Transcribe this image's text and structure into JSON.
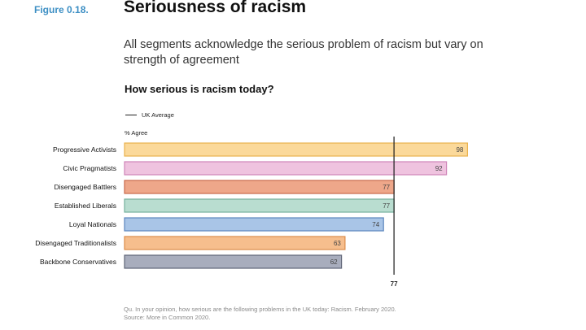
{
  "figure": {
    "prefix": "Figure",
    "number": "0.18."
  },
  "title": "Seriousness of racism",
  "subtitle": "All segments acknowledge the serious problem of racism but vary on strength of agreement",
  "question": "How serious is racism today?",
  "legend": {
    "label": "UK Average"
  },
  "axis_label": "% Agree",
  "footnote": {
    "line1": "Qu. In your opinion, how serious are the following problems in the UK today: Racism. February 2020.",
    "line2": "Source: More in Common 2020."
  },
  "chart_data": {
    "type": "bar",
    "orientation": "horizontal",
    "categories": [
      "Progressive Activists",
      "Civic Pragmatists",
      "Disengaged Battlers",
      "Established Liberals",
      "Loyal Nationals",
      "Disengaged Traditionalists",
      "Backbone Conservatives"
    ],
    "values": [
      98,
      92,
      77,
      77,
      74,
      63,
      62
    ],
    "colors": [
      {
        "fill": "#fbd99a",
        "stroke": "#eab24d"
      },
      {
        "fill": "#efc3df",
        "stroke": "#cf84b8"
      },
      {
        "fill": "#eea78a",
        "stroke": "#c9694a"
      },
      {
        "fill": "#b9ddd0",
        "stroke": "#76b19d"
      },
      {
        "fill": "#a9c5e7",
        "stroke": "#5b85bd"
      },
      {
        "fill": "#f6be8d",
        "stroke": "#dc8c4a"
      },
      {
        "fill": "#a8adbd",
        "stroke": "#5f6577"
      }
    ],
    "reference_line": {
      "name": "UK Average",
      "value": 77,
      "label": "77"
    },
    "xlim": [
      0,
      100
    ]
  }
}
